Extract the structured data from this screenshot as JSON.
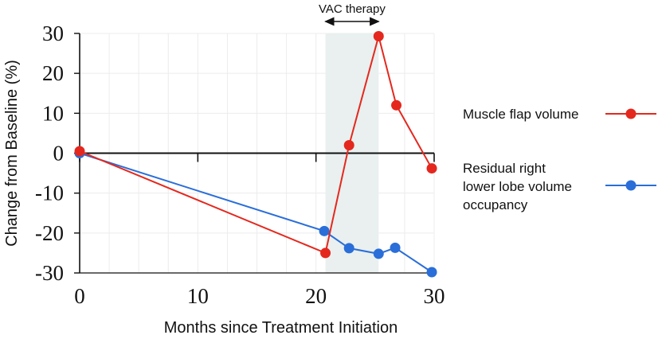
{
  "chart_data": {
    "type": "line",
    "title": "",
    "xlabel": "Months since Treatment Initiation",
    "ylabel": "Change from Baseline (%)",
    "xlim": [
      0,
      30
    ],
    "ylim": [
      -30,
      30
    ],
    "xticks": [
      0,
      10,
      20,
      30
    ],
    "yticks": [
      30,
      20,
      10,
      0,
      -10,
      -20,
      -30
    ],
    "xtick_labels": [
      "0",
      "10",
      "20",
      "30"
    ],
    "ytick_labels": [
      "30",
      "20",
      "10",
      "0",
      "-10",
      "-20",
      "-30"
    ],
    "grid": true,
    "shaded_region": {
      "x": [
        20.8,
        25.3
      ],
      "label": "VAC therapy",
      "color": "#e9f0ef"
    },
    "series": [
      {
        "name": "Muscle flap volume",
        "color": "#e4281e",
        "x": [
          0,
          20.8,
          22.8,
          25.3,
          26.8,
          29.8
        ],
        "y": [
          0.5,
          -25,
          2,
          29.3,
          12,
          -3.8
        ]
      },
      {
        "name": "Residual right lower lobe volume occupancy",
        "legend_lines": [
          "Residual right",
          "lower lobe volume",
          "occupancy"
        ],
        "color": "#2a6ed9",
        "x": [
          0,
          20.7,
          22.8,
          25.3,
          26.7,
          29.8
        ],
        "y": [
          0,
          -19.5,
          -23.8,
          -25.2,
          -23.7,
          -29.8
        ]
      }
    ],
    "legend_position": "right"
  }
}
